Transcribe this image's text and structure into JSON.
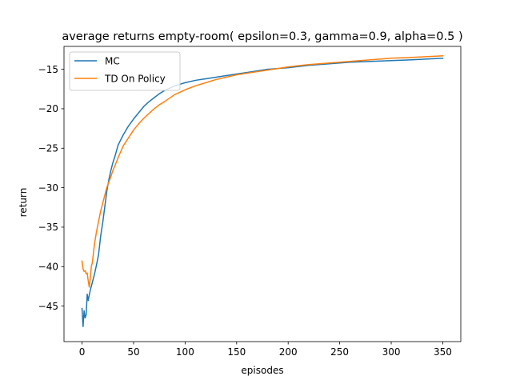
{
  "chart_data": {
    "type": "line",
    "title": "average returns empty-room( epsilon=0.3, gamma=0.9, alpha=0.5 )",
    "xlabel": "episodes",
    "ylabel": "return",
    "xlim": [
      -17.5,
      367.5
    ],
    "ylim": [
      -49.5,
      -12.1
    ],
    "xticks": [
      0,
      50,
      100,
      150,
      200,
      250,
      300,
      350
    ],
    "xtick_labels": [
      "0",
      "50",
      "100",
      "150",
      "200",
      "250",
      "300",
      "350"
    ],
    "yticks": [
      -45,
      -40,
      -35,
      -30,
      -25,
      -20,
      -15
    ],
    "ytick_labels": [
      "−45",
      "−40",
      "−35",
      "−30",
      "−25",
      "−20",
      "−15"
    ],
    "legend_position": "upper left",
    "grid": false,
    "series": [
      {
        "name": "MC",
        "color": "#1f77b4",
        "x": [
          0,
          1,
          2,
          3,
          4,
          5,
          6,
          7,
          8,
          9,
          10,
          12,
          14,
          16,
          18,
          20,
          22,
          24,
          26,
          28,
          30,
          32,
          35,
          40,
          45,
          50,
          55,
          60,
          65,
          70,
          75,
          80,
          90,
          100,
          110,
          120,
          130,
          140,
          150,
          160,
          170,
          180,
          190,
          200,
          220,
          240,
          260,
          280,
          300,
          320,
          350
        ],
        "y": [
          -45.3,
          -47.6,
          -45.6,
          -46.5,
          -46.1,
          -43.5,
          -44.3,
          -43.6,
          -43.0,
          -42.5,
          -42.0,
          -41.0,
          -39.8,
          -38.5,
          -36.2,
          -34.5,
          -32.5,
          -30.5,
          -29.0,
          -27.8,
          -26.8,
          -26.0,
          -24.6,
          -23.3,
          -22.2,
          -21.3,
          -20.5,
          -19.7,
          -19.1,
          -18.6,
          -18.1,
          -17.7,
          -17.1,
          -16.7,
          -16.4,
          -16.2,
          -16.0,
          -15.8,
          -15.6,
          -15.4,
          -15.2,
          -15.0,
          -14.9,
          -14.8,
          -14.5,
          -14.3,
          -14.1,
          -14.0,
          -13.9,
          -13.8,
          -13.6
        ]
      },
      {
        "name": "TD On Policy",
        "color": "#ff7f0e",
        "x": [
          0,
          1,
          2,
          3,
          4,
          5,
          6,
          7,
          8,
          9,
          10,
          12,
          14,
          16,
          18,
          20,
          22,
          24,
          26,
          28,
          30,
          32,
          35,
          40,
          45,
          50,
          55,
          60,
          65,
          70,
          75,
          80,
          90,
          100,
          110,
          120,
          130,
          140,
          150,
          160,
          170,
          180,
          190,
          200,
          220,
          240,
          260,
          280,
          300,
          320,
          350
        ],
        "y": [
          -39.3,
          -40.3,
          -40.6,
          -40.5,
          -40.9,
          -40.8,
          -41.8,
          -42.6,
          -41.5,
          -40.0,
          -39.5,
          -37.2,
          -35.6,
          -34.3,
          -33.0,
          -32.0,
          -31.0,
          -30.0,
          -29.3,
          -28.6,
          -27.8,
          -27.2,
          -26.2,
          -24.7,
          -23.7,
          -22.7,
          -21.9,
          -21.2,
          -20.6,
          -20.0,
          -19.5,
          -19.1,
          -18.2,
          -17.6,
          -17.1,
          -16.7,
          -16.3,
          -16.0,
          -15.7,
          -15.5,
          -15.3,
          -15.1,
          -14.9,
          -14.7,
          -14.4,
          -14.2,
          -14.0,
          -13.8,
          -13.6,
          -13.5,
          -13.3
        ]
      }
    ]
  }
}
